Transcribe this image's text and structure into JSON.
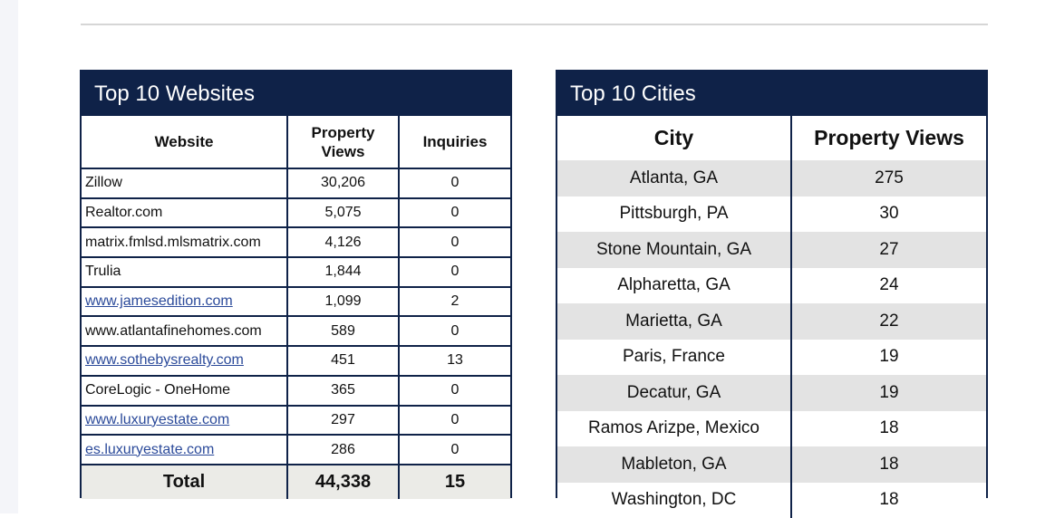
{
  "websites": {
    "title": "Top 10 Websites",
    "headers": {
      "website": "Website",
      "views": "Property Views",
      "inquiries": "Inquiries"
    },
    "rows": [
      {
        "name": "Zillow",
        "views": "30,206",
        "inquiries": "0"
      },
      {
        "name": "Realtor.com",
        "views": "5,075",
        "inquiries": "0"
      },
      {
        "name": "matrix.fmlsd.mlsmatrix.com",
        "views": "4,126",
        "inquiries": "0"
      },
      {
        "name": "Trulia",
        "views": "1,844",
        "inquiries": "0"
      },
      {
        "name": "www.jamesedition.com",
        "views": "1,099",
        "inquiries": "2"
      },
      {
        "name": "www.atlantafinehomes.com",
        "views": "589",
        "inquiries": "0"
      },
      {
        "name": "www.sothebysrealty.com",
        "views": "451",
        "inquiries": "13"
      },
      {
        "name": "CoreLogic - OneHome",
        "views": "365",
        "inquiries": "0"
      },
      {
        "name": "www.luxuryestate.com",
        "views": "297",
        "inquiries": "0"
      },
      {
        "name": "es.luxuryestate.com",
        "views": "286",
        "inquiries": "0"
      }
    ],
    "total": {
      "label": "Total",
      "views": "44,338",
      "inquiries": "15"
    }
  },
  "cities": {
    "title": "Top 10 Cities",
    "headers": {
      "city": "City",
      "views": "Property Views"
    },
    "rows": [
      {
        "city": "Atlanta, GA",
        "views": "275"
      },
      {
        "city": "Pittsburgh, PA",
        "views": "30"
      },
      {
        "city": "Stone Mountain, GA",
        "views": "27"
      },
      {
        "city": "Alpharetta, GA",
        "views": "24"
      },
      {
        "city": "Marietta, GA",
        "views": "22"
      },
      {
        "city": "Paris, France",
        "views": "19"
      },
      {
        "city": "Decatur, GA",
        "views": "19"
      },
      {
        "city": "Ramos Arizpe, Mexico",
        "views": "18"
      },
      {
        "city": "Mableton, GA",
        "views": "18"
      },
      {
        "city": "Washington, DC",
        "views": "18"
      }
    ]
  }
}
